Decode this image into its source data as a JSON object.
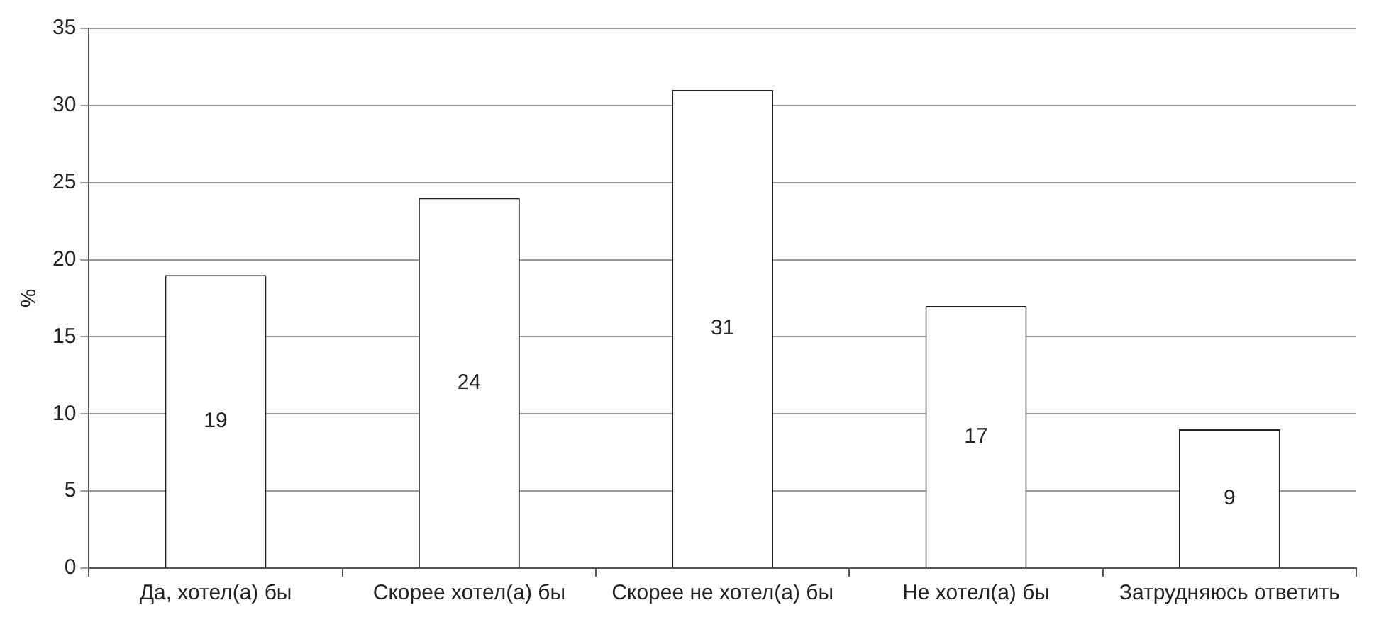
{
  "chart_data": {
    "type": "bar",
    "ylabel": "%",
    "categories": [
      "Да, хотел(а) бы",
      "Скорее хотел(а) бы",
      "Скорее не хотел(а) бы",
      "Не хотел(а) бы",
      "Затрудняюсь ответить"
    ],
    "values": [
      19,
      24,
      31,
      17,
      9
    ],
    "color": "#ffffff",
    "ylim": [
      0,
      35
    ],
    "yticks": [
      0,
      5,
      10,
      15,
      20,
      25,
      30,
      35
    ],
    "grid": "y",
    "data_labels": true
  }
}
